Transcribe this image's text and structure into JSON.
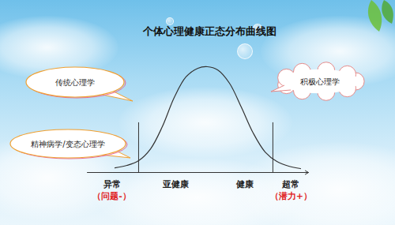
{
  "chart_data": {
    "type": "line",
    "title": "个体心理健康正态分布曲线图",
    "x": [
      12.5,
      17.9,
      23.2,
      28.6,
      33.9,
      39.3,
      44.6,
      50.0,
      54.3,
      58.9,
      64.3,
      69.6,
      75.0,
      80.4,
      85.7,
      91.1,
      96.4
    ],
    "values": [
      4.3,
      6.5,
      10.9,
      21.7,
      42.0,
      68.8,
      87.7,
      95.7,
      97.1,
      94.2,
      81.9,
      60.1,
      36.2,
      18.8,
      10.1,
      5.8,
      3.6
    ],
    "xlim": [
      0,
      100
    ],
    "ylim": [
      0,
      100
    ],
    "tick_labels": false,
    "color": "#333333",
    "dividers": [
      {
        "x": 23.2,
        "y": 45.7
      },
      {
        "x": 83.9,
        "y": 45.7
      }
    ],
    "regions": [
      {
        "x": 11.1,
        "label": "异常",
        "note": "（问题-）"
      },
      {
        "x": 40.0,
        "label": "亚健康"
      },
      {
        "x": 71.4,
        "label": "健康"
      },
      {
        "x": 92.1,
        "label": "超常",
        "note": "（潜力+）"
      }
    ],
    "annotations": [
      "传统心理学",
      "精神病学/变态心理学",
      "积极心理学"
    ]
  }
}
